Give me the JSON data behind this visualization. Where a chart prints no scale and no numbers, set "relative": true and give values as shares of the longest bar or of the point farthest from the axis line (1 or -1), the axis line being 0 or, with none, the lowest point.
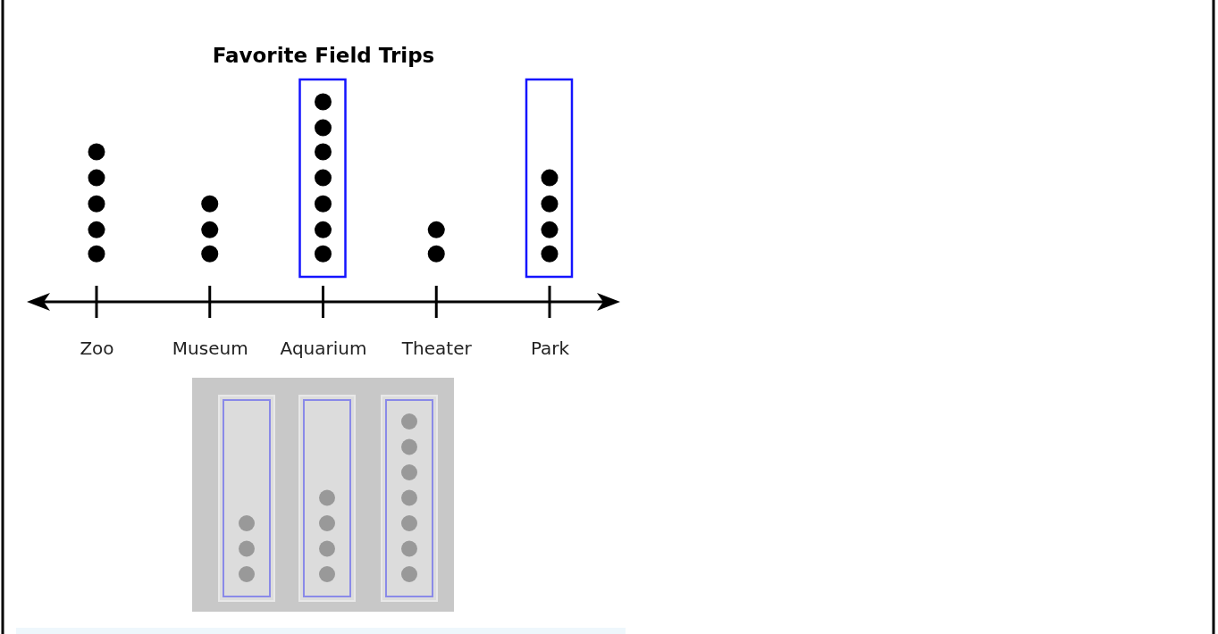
{
  "chart_data": {
    "type": "scatter",
    "title": "Favorite Field Trips",
    "relative": true,
    "categories": [
      "Zoo",
      "Museum",
      "Aquarium",
      "Theater",
      "Park"
    ],
    "series": [
      {
        "color": "#000000",
        "marker": "circle",
        "x": [
          "Zoo",
          "Zoo",
          "Zoo",
          "Zoo",
          "Zoo",
          "Museum",
          "Museum",
          "Museum",
          "Aquarium",
          "Aquarium",
          "Aquarium",
          "Aquarium",
          "Aquarium",
          "Aquarium",
          "Aquarium",
          "Theater",
          "Theater",
          "Park",
          "Park",
          "Park",
          "Park"
        ],
        "values": [
          0.24,
          0.36,
          0.49,
          0.62,
          0.75,
          0.24,
          0.36,
          0.49,
          0.24,
          0.36,
          0.49,
          0.62,
          0.75,
          0.87,
          1,
          0.24,
          0.36,
          0.24,
          0.36,
          0.49,
          0.62
        ]
      }
    ]
  }
}
